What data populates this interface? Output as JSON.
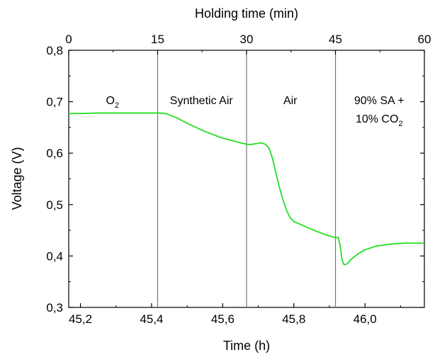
{
  "chart_data": {
    "type": "line",
    "xlabel": "Time (h)",
    "ylabel": "Voltage (V)",
    "top_xlabel": "Holding time (min)",
    "xlim": [
      45.167,
      46.167
    ],
    "ylim": [
      0.3,
      0.8
    ],
    "top_xlim": [
      0,
      60
    ],
    "x_ticks": [
      45.2,
      45.4,
      45.6,
      45.8,
      46.0
    ],
    "x_tick_labels": [
      "45,2",
      "45,4",
      "45,6",
      "45,8",
      "46,0"
    ],
    "y_ticks": [
      0.3,
      0.4,
      0.5,
      0.6,
      0.7,
      0.8
    ],
    "y_tick_labels": [
      "0,3",
      "0,4",
      "0,5",
      "0,6",
      "0,7",
      "0,8"
    ],
    "top_ticks": [
      0,
      15,
      30,
      45,
      60
    ],
    "top_tick_labels": [
      "0",
      "15",
      "30",
      "45",
      "60"
    ],
    "grid": false,
    "colors": {
      "series": "#22e022",
      "divider": "#777777",
      "axis": "#000000"
    },
    "dividers": [
      45.417,
      45.667,
      45.917
    ],
    "regions": [
      {
        "line1": "O",
        "line1_sub": "2",
        "line1_after": "",
        "x": 45.29,
        "y": 0.695
      },
      {
        "line1": "Synthetic Air",
        "line1_sub": "",
        "line1_after": "",
        "x": 45.54,
        "y": 0.695
      },
      {
        "line1": "Air",
        "line1_sub": "",
        "line1_after": "",
        "x": 45.79,
        "y": 0.695
      },
      {
        "line1": "90% SA +",
        "line1_sub": "",
        "line1_after": "",
        "line2": "10% CO",
        "line2_sub": "2",
        "x": 46.04,
        "y": 0.695
      }
    ],
    "series": [
      {
        "x": [
          45.167,
          45.2,
          45.25,
          45.3,
          45.35,
          45.4,
          45.42,
          45.44,
          45.47,
          45.5,
          45.55,
          45.6,
          45.65,
          45.67,
          45.68,
          45.69,
          45.7,
          45.71,
          45.72,
          45.73,
          45.74,
          45.75,
          45.76,
          45.77,
          45.78,
          45.79,
          45.8,
          45.83,
          45.86,
          45.89,
          45.915,
          45.925,
          45.93,
          45.935,
          45.94,
          45.945,
          45.95,
          45.96,
          45.98,
          46.0,
          46.03,
          46.07,
          46.11,
          46.167
        ],
        "values": [
          0.677,
          0.677,
          0.678,
          0.678,
          0.678,
          0.678,
          0.678,
          0.677,
          0.669,
          0.658,
          0.642,
          0.629,
          0.62,
          0.617,
          0.617,
          0.618,
          0.619,
          0.62,
          0.617,
          0.61,
          0.59,
          0.56,
          0.532,
          0.508,
          0.488,
          0.474,
          0.467,
          0.458,
          0.449,
          0.441,
          0.436,
          0.436,
          0.42,
          0.395,
          0.384,
          0.383,
          0.385,
          0.393,
          0.404,
          0.412,
          0.419,
          0.423,
          0.425,
          0.425
        ]
      }
    ]
  }
}
